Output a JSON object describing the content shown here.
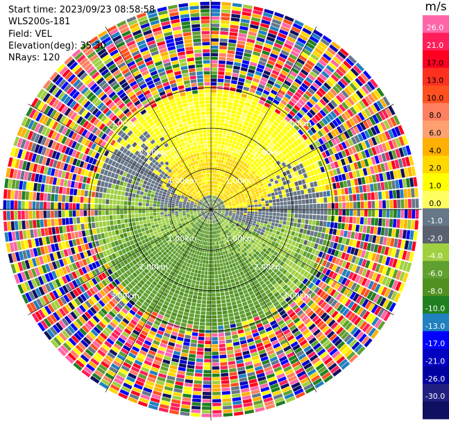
{
  "info": {
    "start_time": "Start time: 2023/09/23 08:58:58",
    "instrument": "WLS200s-181",
    "field": "Field: VEL",
    "elevation": "Elevation(deg): 35.30",
    "nrays": "NRays: 120"
  },
  "colorbar": {
    "unit": "m/s",
    "ticks": [
      "26.0",
      "21.0",
      "17.0",
      "13.0",
      "10.0",
      "8.0",
      "6.0",
      "4.0",
      "2.0",
      "1.0",
      "0.0",
      "-1.0",
      "-2.0",
      "-4.0",
      "-6.0",
      "-8.0",
      "-10.0",
      "-13.0",
      "-17.0",
      "-21.0",
      "-26.0",
      "-30.0"
    ],
    "colors": [
      "#ff66a8",
      "#ff1e5a",
      "#ff0020",
      "#ff3020",
      "#ff5020",
      "#ff8060",
      "#ffa070",
      "#ffb000",
      "#ffd800",
      "#ffff00",
      "#ffff60",
      "#667788",
      "#5a6070",
      "#a0d040",
      "#60a030",
      "#509020",
      "#208020",
      "#2080c0",
      "#0000ff",
      "#0000c0",
      "#0000a0",
      "#202080",
      "#101060"
    ]
  },
  "chart_data": {
    "type": "heatmap",
    "projection": "polar PPI",
    "field": "VEL",
    "nrays": 120,
    "range_rings_km": [
      1.0,
      2.0,
      3.0
    ],
    "ring_labels": [
      {
        "text": "1.00km"
      },
      {
        "text": "1.00km"
      },
      {
        "text": "1.00km"
      },
      {
        "text": "1.00km"
      },
      {
        "text": "2.00km"
      },
      {
        "text": "2.00km"
      },
      {
        "text": "2.00km"
      },
      {
        "text": "2.00km"
      },
      {
        "text": "3.00km"
      },
      {
        "text": "3.00km"
      },
      {
        "text": "3.00km"
      },
      {
        "text": "3.00km"
      }
    ],
    "spokes_deg": [
      0,
      30,
      60,
      90,
      120,
      150,
      180,
      210,
      240,
      270,
      300,
      330
    ],
    "max_range_km": 5.2
  }
}
